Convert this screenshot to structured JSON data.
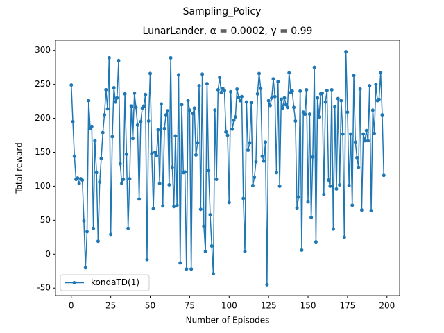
{
  "chart_data": {
    "type": "line",
    "suptitle": "Sampling_Policy",
    "title": "LunarLander, α = 0.0002, γ = 0.99",
    "xlabel": "Number of Episodes",
    "ylabel": "Total reward",
    "x": [
      0,
      1,
      2,
      3,
      4,
      5,
      6,
      7,
      8,
      9,
      10,
      11,
      12,
      13,
      14,
      15,
      16,
      17,
      18,
      19,
      20,
      21,
      22,
      23,
      24,
      25,
      26,
      27,
      28,
      29,
      30,
      31,
      32,
      33,
      34,
      35,
      36,
      37,
      38,
      39,
      40,
      41,
      42,
      43,
      44,
      45,
      46,
      47,
      48,
      49,
      50,
      51,
      52,
      53,
      54,
      55,
      56,
      57,
      58,
      59,
      60,
      61,
      62,
      63,
      64,
      65,
      66,
      67,
      68,
      69,
      70,
      71,
      72,
      73,
      74,
      75,
      76,
      77,
      78,
      79,
      80,
      81,
      82,
      83,
      84,
      85,
      86,
      87,
      88,
      89,
      90,
      91,
      92,
      93,
      94,
      95,
      96,
      97,
      98,
      99,
      100,
      101,
      102,
      103,
      104,
      105,
      106,
      107,
      108,
      109,
      110,
      111,
      112,
      113,
      114,
      115,
      116,
      117,
      118,
      119,
      120,
      121,
      122,
      123,
      124,
      125,
      126,
      127,
      128,
      129,
      130,
      131,
      132,
      133,
      134,
      135,
      136,
      137,
      138,
      139,
      140,
      141,
      142,
      143,
      144,
      145,
      146,
      147,
      148,
      149,
      150,
      151,
      152,
      153,
      154,
      155,
      156,
      157,
      158,
      159,
      160,
      161,
      162,
      163,
      164,
      165,
      166,
      167,
      168,
      169,
      170,
      171,
      172,
      173,
      174,
      175,
      176,
      177,
      178,
      179,
      180,
      181,
      182,
      183,
      184,
      185,
      186,
      187,
      188,
      189,
      190,
      191,
      192,
      193,
      194,
      195,
      196,
      197,
      198
    ],
    "series": [
      {
        "name": "kondaTD(1)",
        "color": "#1f77b4",
        "values": [
          249,
          195,
          144,
          110,
          112,
          104,
          111,
          109,
          49,
          -20,
          33,
          226,
          185,
          188,
          38,
          167,
          120,
          19,
          106,
          141,
          179,
          205,
          242,
          214,
          289,
          29,
          173,
          245,
          224,
          230,
          285,
          133,
          104,
          110,
          236,
          147,
          38,
          111,
          218,
          170,
          237,
          216,
          190,
          81,
          195,
          215,
          218,
          235,
          -8,
          196,
          266,
          148,
          67,
          150,
          145,
          183,
          104,
          221,
          71,
          185,
          205,
          211,
          102,
          289,
          128,
          70,
          174,
          72,
          264,
          -13,
          220,
          120,
          121,
          -22,
          226,
          212,
          -22,
          207,
          215,
          146,
          164,
          248,
          66,
          265,
          41,
          4,
          251,
          123,
          58,
          12,
          -29,
          212,
          110,
          242,
          260,
          238,
          244,
          241,
          180,
          175,
          76,
          239,
          184,
          197,
          202,
          243,
          231,
          226,
          232,
          82,
          4,
          224,
          153,
          164,
          223,
          101,
          113,
          136,
          236,
          266,
          244,
          144,
          137,
          165,
          -45,
          226,
          219,
          230,
          258,
          232,
          120,
          254,
          100,
          228,
          215,
          230,
          220,
          216,
          267,
          238,
          240,
          216,
          196,
          68,
          84,
          240,
          6,
          209,
          206,
          242,
          77,
          206,
          54,
          143,
          275,
          18,
          230,
          202,
          236,
          237,
          88,
          224,
          241,
          109,
          100,
          242,
          37,
          217,
          96,
          229,
          102,
          226,
          177,
          25,
          298,
          209,
          101,
          177,
          72,
          263,
          165,
          142,
          128,
          243,
          65,
          177,
          167,
          182,
          167,
          248,
          64,
          212,
          178,
          250,
          226,
          228,
          267,
          205,
          116
        ]
      }
    ],
    "xlim": [
      -10,
      208
    ],
    "ylim": [
      -61,
      315
    ],
    "xticks": [
      0,
      25,
      50,
      75,
      100,
      125,
      150,
      175,
      200
    ],
    "yticks": [
      -50,
      0,
      50,
      100,
      150,
      200,
      250,
      300
    ],
    "legend": "lower left"
  }
}
